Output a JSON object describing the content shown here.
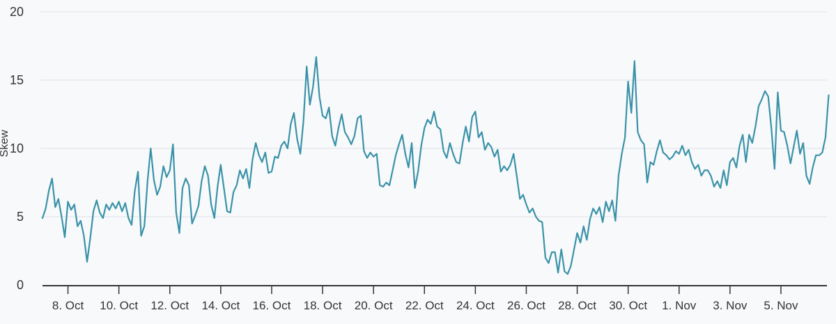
{
  "chart_data": {
    "type": "line",
    "title": "",
    "xlabel": "",
    "ylabel": "Skew",
    "ylim": [
      0,
      20
    ],
    "yticks": [
      0,
      5,
      10,
      15,
      20
    ],
    "grid": "horizontal",
    "legend_position": "none",
    "x_start_label": "7. Oct",
    "points_per_day": 8,
    "xticks": [
      {
        "label": "8. Oct",
        "day": 1
      },
      {
        "label": "10. Oct",
        "day": 3
      },
      {
        "label": "12. Oct",
        "day": 5
      },
      {
        "label": "14. Oct",
        "day": 7
      },
      {
        "label": "16. Oct",
        "day": 9
      },
      {
        "label": "18. Oct",
        "day": 11
      },
      {
        "label": "20. Oct",
        "day": 13
      },
      {
        "label": "22. Oct",
        "day": 15
      },
      {
        "label": "24. Oct",
        "day": 17
      },
      {
        "label": "26. Oct",
        "day": 19
      },
      {
        "label": "28. Oct",
        "day": 21
      },
      {
        "label": "30. Oct",
        "day": 23
      },
      {
        "label": "1. Nov",
        "day": 25
      },
      {
        "label": "3. Nov",
        "day": 27
      },
      {
        "label": "5. Nov",
        "day": 29
      }
    ],
    "series": [
      {
        "name": "Skew",
        "color": "#3a92a8",
        "values": [
          4.9,
          5.6,
          6.9,
          7.8,
          5.7,
          6.3,
          5.0,
          3.5,
          6.1,
          5.5,
          5.9,
          4.3,
          4.7,
          3.6,
          1.7,
          3.4,
          5.4,
          6.2,
          5.3,
          4.9,
          5.9,
          5.5,
          6.0,
          5.6,
          6.1,
          5.4,
          6.0,
          4.9,
          4.4,
          6.9,
          8.3,
          3.6,
          4.3,
          7.6,
          10.0,
          7.7,
          6.6,
          7.2,
          8.7,
          7.9,
          8.4,
          10.3,
          5.3,
          3.8,
          7.1,
          7.8,
          7.3,
          4.5,
          5.1,
          5.8,
          7.6,
          8.7,
          8.0,
          5.9,
          4.9,
          7.2,
          8.8,
          7.1,
          5.4,
          5.3,
          6.8,
          7.3,
          8.4,
          7.8,
          8.5,
          7.1,
          9.2,
          10.4,
          9.5,
          9.0,
          9.7,
          8.2,
          8.3,
          9.4,
          9.3,
          10.2,
          10.5,
          10.0,
          11.8,
          12.6,
          10.7,
          9.6,
          12.0,
          16.0,
          13.2,
          14.5,
          16.7,
          13.8,
          12.4,
          12.2,
          13.0,
          10.9,
          10.2,
          11.5,
          12.5,
          11.2,
          10.8,
          10.3,
          10.9,
          12.2,
          12.4,
          9.8,
          9.3,
          9.7,
          9.4,
          9.6,
          7.3,
          7.2,
          7.5,
          7.3,
          8.4,
          9.5,
          10.3,
          11.0,
          9.6,
          8.6,
          10.4,
          7.1,
          8.3,
          10.2,
          11.5,
          12.1,
          11.8,
          12.7,
          11.6,
          11.4,
          9.8,
          9.3,
          10.4,
          9.6,
          9.0,
          8.9,
          10.4,
          11.6,
          10.5,
          12.3,
          12.7,
          10.8,
          11.2,
          9.9,
          10.4,
          10.1,
          9.4,
          9.9,
          8.3,
          8.7,
          8.4,
          8.8,
          9.6,
          8.0,
          6.3,
          6.6,
          5.9,
          5.3,
          5.6,
          5.0,
          4.7,
          4.6,
          2.0,
          1.6,
          2.4,
          2.4,
          0.9,
          2.6,
          1.0,
          0.8,
          1.4,
          2.6,
          3.8,
          3.1,
          4.3,
          3.3,
          4.8,
          5.6,
          5.2,
          5.7,
          4.6,
          6.1,
          5.4,
          6.2,
          4.7,
          8.0,
          9.6,
          10.8,
          14.9,
          12.6,
          16.4,
          11.2,
          10.6,
          10.3,
          7.5,
          9.0,
          8.8,
          9.8,
          10.6,
          9.7,
          9.5,
          9.2,
          9.4,
          9.8,
          9.6,
          10.2,
          9.5,
          9.9,
          9.0,
          8.5,
          8.8,
          8.0,
          8.4,
          8.4,
          8.0,
          7.2,
          7.6,
          7.1,
          8.4,
          7.3,
          9.0,
          9.3,
          8.6,
          10.2,
          11.0,
          9.0,
          11.0,
          10.4,
          11.6,
          13.1,
          13.6,
          14.2,
          13.8,
          11.5,
          8.5,
          14.1,
          11.3,
          11.2,
          10.2,
          8.9,
          10.1,
          11.3,
          9.6,
          10.4,
          8.0,
          7.4,
          8.6,
          9.5,
          9.5,
          9.7,
          10.8,
          13.9
        ]
      }
    ]
  },
  "colors": {
    "background": "#f8f9fb",
    "grid": "#e7e9ec",
    "axis": "#333333",
    "text": "#333333",
    "line": "#3a92a8"
  }
}
